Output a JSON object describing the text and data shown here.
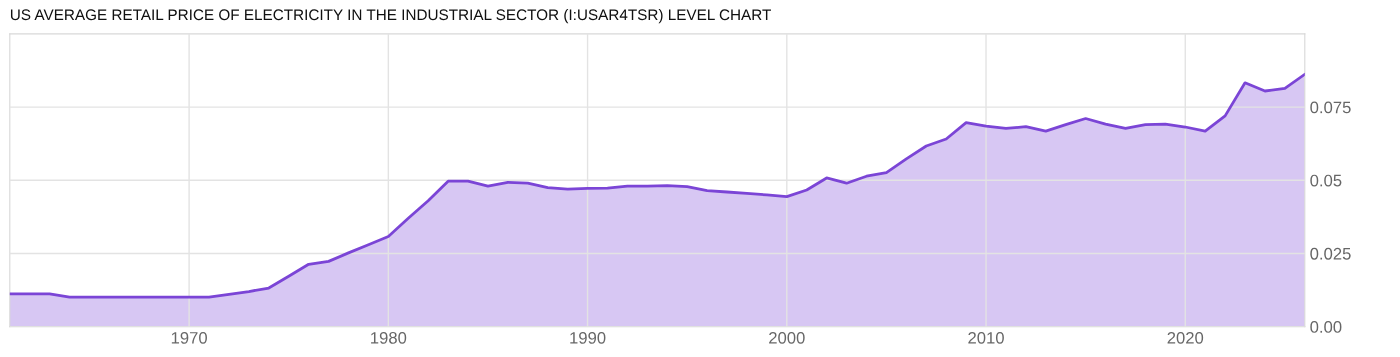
{
  "chart_data": {
    "type": "area",
    "title": "US AVERAGE RETAIL PRICE OF ELECTRICITY IN THE INDUSTRIAL SECTOR (I:USAR4TSR) LEVEL CHART",
    "x": [
      1961,
      1962,
      1963,
      1964,
      1965,
      1966,
      1967,
      1968,
      1969,
      1970,
      1971,
      1972,
      1973,
      1974,
      1975,
      1976,
      1977,
      1978,
      1979,
      1980,
      1981,
      1982,
      1983,
      1984,
      1985,
      1986,
      1987,
      1988,
      1989,
      1990,
      1991,
      1992,
      1993,
      1994,
      1995,
      1996,
      1997,
      1998,
      1999,
      2000,
      2001,
      2002,
      2003,
      2004,
      2005,
      2006,
      2007,
      2008,
      2009,
      2010,
      2011,
      2012,
      2013,
      2014,
      2015,
      2016,
      2017,
      2018,
      2019,
      2020,
      2021,
      2022,
      2023,
      2024,
      2025,
      2026
    ],
    "series": [
      {
        "color": "#7b45d6",
        "values": [
          0.0112,
          0.0112,
          0.0112,
          0.0101,
          0.0101,
          0.0101,
          0.0101,
          0.0101,
          0.0101,
          0.0101,
          0.0101,
          0.011,
          0.012,
          0.0132,
          0.0172,
          0.0213,
          0.0223,
          0.0252,
          0.028,
          0.0308,
          0.037,
          0.043,
          0.0497,
          0.0497,
          0.048,
          0.0493,
          0.049,
          0.0475,
          0.047,
          0.0472,
          0.0473,
          0.048,
          0.048,
          0.0482,
          0.0478,
          0.0465,
          0.046,
          0.0455,
          0.045,
          0.0444,
          0.0467,
          0.0508,
          0.049,
          0.0514,
          0.0526,
          0.0573,
          0.0617,
          0.0641,
          0.0697,
          0.0685,
          0.0677,
          0.0683,
          0.0668,
          0.069,
          0.0711,
          0.0692,
          0.0677,
          0.069,
          0.0692,
          0.0682,
          0.0668,
          0.072,
          0.0833,
          0.0805,
          0.0814,
          0.0862
        ]
      }
    ],
    "xlim": [
      1961,
      2026
    ],
    "xticks": [
      1970,
      1980,
      1990,
      2000,
      2010,
      2020
    ],
    "ylim": [
      0,
      0.1
    ],
    "yticks": [
      {
        "value": 0,
        "label": "0.00"
      },
      0.025,
      0.05,
      0.075
    ],
    "grid": true,
    "legend": false
  }
}
